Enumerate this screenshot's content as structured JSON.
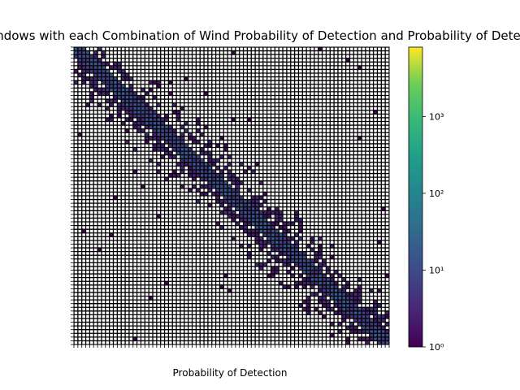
{
  "chart_data": {
    "type": "heatmap",
    "title": "Number of Windows with each Combination of Wind Probability of Detection and Probability of Detection",
    "xlabel": "Probability of Detection",
    "ylabel": "",
    "diagonal_band": {
      "start": 0.0,
      "end": 1.0,
      "description": "counts concentrated along the main diagonal"
    },
    "approx_peak_count": 8000,
    "colorbar": {
      "scale": "log",
      "range": [
        1,
        8000
      ],
      "colormap": "viridis",
      "ticks": [
        {
          "value": 1,
          "label": "10⁰"
        },
        {
          "value": 10,
          "label": "10¹"
        },
        {
          "value": 100,
          "label": "10²"
        },
        {
          "value": 1000,
          "label": "10³"
        }
      ]
    },
    "grid": true,
    "grid_color": "#000000",
    "colors": {
      "low": "#440154",
      "mid": "#21918c",
      "high": "#fde725",
      "empty": "#ffffff"
    }
  }
}
